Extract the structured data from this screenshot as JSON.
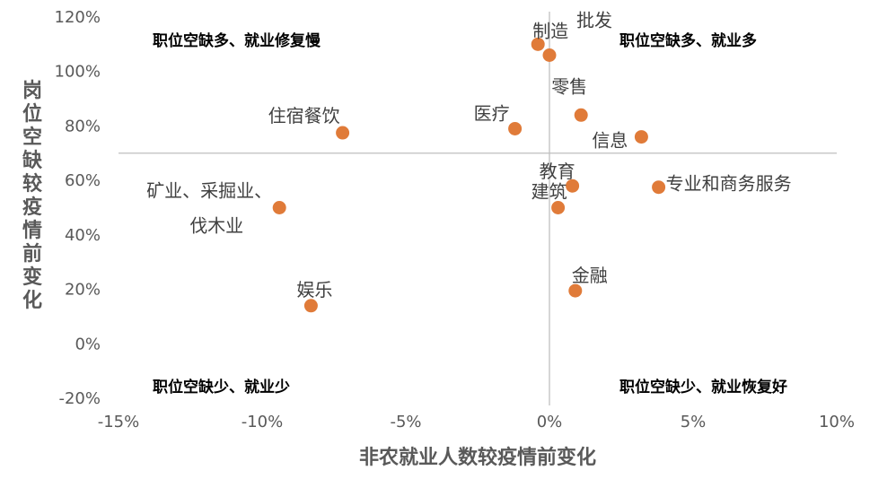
{
  "chart_data": {
    "type": "scatter",
    "xlabel": "非农就业人数较疫情前变化",
    "ylabel": "岗位空缺较疫情前变化",
    "xlim": [
      -0.15,
      0.1
    ],
    "ylim": [
      -0.2,
      1.2
    ],
    "x_ticks": [
      {
        "value": -0.15,
        "label": "-15%"
      },
      {
        "value": -0.1,
        "label": "-10%"
      },
      {
        "value": -0.05,
        "label": "-5%"
      },
      {
        "value": 0.0,
        "label": "0%"
      },
      {
        "value": 0.05,
        "label": "5%"
      },
      {
        "value": 0.1,
        "label": "10%"
      }
    ],
    "y_ticks": [
      {
        "value": 1.2,
        "label": "120%"
      },
      {
        "value": 1.0,
        "label": "100%"
      },
      {
        "value": 0.8,
        "label": "80%"
      },
      {
        "value": 0.6,
        "label": "60%"
      },
      {
        "value": 0.4,
        "label": "40%"
      },
      {
        "value": 0.2,
        "label": "20%"
      },
      {
        "value": 0.0,
        "label": "0%"
      },
      {
        "value": -0.2,
        "label": "-20%"
      }
    ],
    "crosshair": {
      "x": 0.0,
      "y": 0.7
    },
    "grid": false,
    "marker_color": "#E07B39",
    "points": [
      {
        "label": "制造",
        "x": -0.004,
        "y": 1.1
      },
      {
        "label": "批发",
        "x": 0.0,
        "y": 1.06
      },
      {
        "label": "零售",
        "x": 0.011,
        "y": 0.84
      },
      {
        "label": "医疗",
        "x": -0.012,
        "y": 0.79
      },
      {
        "label": "信息",
        "x": 0.032,
        "y": 0.76
      },
      {
        "label": "住宿餐饮",
        "x": -0.072,
        "y": 0.775
      },
      {
        "label": "教育",
        "x": 0.008,
        "y": 0.58
      },
      {
        "label": "专业和商务服务",
        "x": 0.038,
        "y": 0.575
      },
      {
        "label": "建筑",
        "x": 0.003,
        "y": 0.5
      },
      {
        "label": "矿业、采掘业、伐木业",
        "x": -0.094,
        "y": 0.5
      },
      {
        "label": "金融",
        "x": 0.009,
        "y": 0.195
      },
      {
        "label": "娱乐",
        "x": -0.083,
        "y": 0.14
      }
    ],
    "quadrant_labels": [
      "职位空缺多、就业修复慢",
      "职位空缺多、就业多",
      "职位空缺少、就业少",
      "职位空缺少、就业恢复好"
    ]
  }
}
